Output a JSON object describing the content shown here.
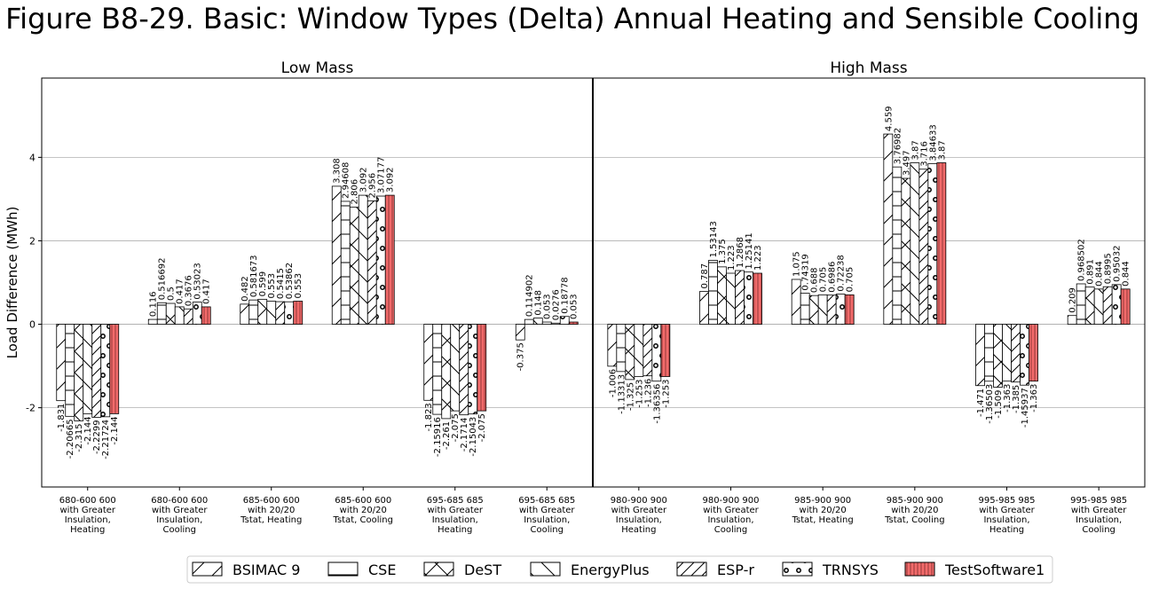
{
  "chart_data": {
    "type": "bar",
    "title": "Figure B8-29. Basic: Window Types (Delta) Annual Heating and Sensible Cooling",
    "ylabel": "Load Difference (MWh)",
    "ylim": [
      -3.9,
      5.9
    ],
    "yticks": [
      -2,
      0,
      2,
      4
    ],
    "grid": true,
    "legend_position": "bottom",
    "series_names": [
      "BSIMAC 9",
      "CSE",
      "DeST",
      "EnergyPlus",
      "ESP-r",
      "TRNSYS",
      "TestSoftware1"
    ],
    "series_patterns": [
      "slash",
      "horizontal",
      "diag-cross",
      "backslash",
      "dense-slash",
      "dots",
      "test"
    ],
    "highlight_color": "#f26b6b",
    "panels": [
      {
        "title": "Low Mass",
        "groups": [
          {
            "label": [
              "680-600 600",
              "with Greater",
              "Insulation,",
              "Heating"
            ],
            "values": [
              -1.831,
              -2.20665,
              -2.315,
              -2.144,
              -2.2299,
              -2.21724,
              -2.144
            ]
          },
          {
            "label": [
              "680-600 600",
              "with Greater",
              "Insulation,",
              "Cooling"
            ],
            "values": [
              0.116,
              0.516692,
              0.5,
              0.417,
              0.3676,
              0.53023,
              0.417
            ]
          },
          {
            "label": [
              "685-600 600",
              "with 20/20",
              "Tstat, Heating"
            ],
            "values": [
              0.482,
              0.581673,
              0.599,
              0.553,
              0.5415,
              0.53862,
              0.553
            ]
          },
          {
            "label": [
              "685-600 600",
              "with 20/20",
              "Tstat, Cooling"
            ],
            "values": [
              3.308,
              2.94608,
              2.806,
              3.092,
              2.956,
              3.07177,
              3.092
            ]
          },
          {
            "label": [
              "695-685 685",
              "with Greater",
              "Insulation,",
              "Heating"
            ],
            "values": [
              -1.823,
              -2.15916,
              -2.261,
              -2.075,
              -2.1714,
              -2.15043,
              -2.075
            ]
          },
          {
            "label": [
              "695-685 685",
              "with Greater",
              "Insulation,",
              "Cooling"
            ],
            "values": [
              -0.375,
              0.114902,
              0.148,
              0.053,
              0.0276,
              0.18778,
              0.053
            ]
          }
        ]
      },
      {
        "title": "High Mass",
        "groups": [
          {
            "label": [
              "980-900 900",
              "with Greater",
              "Insulation,",
              "Heating"
            ],
            "values": [
              -1.006,
              -1.13313,
              -1.325,
              -1.253,
              -1.236,
              -1.36356,
              -1.253
            ]
          },
          {
            "label": [
              "980-900 900",
              "with Greater",
              "Insulation,",
              "Cooling"
            ],
            "values": [
              0.787,
              1.53143,
              1.375,
              1.223,
              1.2868,
              1.25141,
              1.223
            ]
          },
          {
            "label": [
              "985-900 900",
              "with 20/20",
              "Tstat, Heating"
            ],
            "values": [
              1.075,
              0.74319,
              0.688,
              0.705,
              0.6986,
              0.72238,
              0.705
            ]
          },
          {
            "label": [
              "985-900 900",
              "with 20/20",
              "Tstat, Cooling"
            ],
            "values": [
              4.559,
              3.76982,
              3.497,
              3.87,
              3.716,
              3.84633,
              3.87
            ]
          },
          {
            "label": [
              "995-985 985",
              "with Greater",
              "Insulation,",
              "Heating"
            ],
            "values": [
              -1.471,
              -1.36503,
              -1.509,
              -1.363,
              -1.385,
              -1.45937,
              -1.363
            ]
          },
          {
            "label": [
              "995-985 985",
              "with Greater",
              "Insulation,",
              "Cooling"
            ],
            "values": [
              0.209,
              0.968502,
              0.891,
              0.844,
              0.8995,
              0.95032,
              0.844
            ]
          }
        ]
      }
    ]
  }
}
